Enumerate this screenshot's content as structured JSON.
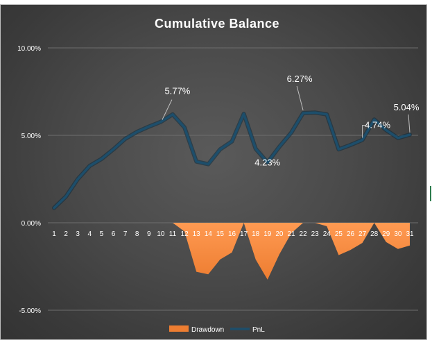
{
  "chart_data": {
    "type": "line",
    "title": "Cumulative Balance",
    "xlabel": "",
    "ylabel": "",
    "categories": [
      "1",
      "2",
      "3",
      "4",
      "5",
      "6",
      "7",
      "8",
      "9",
      "10",
      "11",
      "12",
      "13",
      "14",
      "15",
      "16",
      "17",
      "18",
      "19",
      "20",
      "21",
      "22",
      "23",
      "24",
      "25",
      "26",
      "27",
      "28",
      "29",
      "30",
      "31"
    ],
    "ylim": [
      -5,
      10
    ],
    "yticks": [
      -5,
      0,
      5,
      10
    ],
    "ytick_labels": [
      "-5.00%",
      "0.00%",
      "5.00%",
      "10.00%"
    ],
    "grid": true,
    "legend_position": "bottom",
    "series": [
      {
        "name": "Drawdown",
        "kind": "area",
        "color": "#ed7d31",
        "values": [
          0,
          0,
          0,
          0,
          0,
          0,
          0,
          0,
          0,
          0,
          0,
          -0.5,
          -2.8,
          -2.95,
          -2.1,
          -1.7,
          0,
          -2.1,
          -3.25,
          -1.8,
          -0.6,
          0,
          0,
          -0.2,
          -1.85,
          -1.55,
          -1.15,
          0,
          -1.1,
          -1.5,
          -1.3
        ]
      },
      {
        "name": "PnL",
        "kind": "line",
        "color": "#1d4e6b",
        "values": [
          0.85,
          1.5,
          2.5,
          3.25,
          3.65,
          4.2,
          4.8,
          5.2,
          5.5,
          5.77,
          6.2,
          5.45,
          3.5,
          3.35,
          4.2,
          4.65,
          6.23,
          4.23,
          3.45,
          4.35,
          5.15,
          6.27,
          6.3,
          6.2,
          4.2,
          4.45,
          4.74,
          5.9,
          5.3,
          4.85,
          5.04
        ]
      }
    ],
    "data_labels": [
      {
        "index": 9,
        "text": "5.77%"
      },
      {
        "index": 17,
        "text": "4.23%"
      },
      {
        "index": 21,
        "text": "6.27%"
      },
      {
        "index": 26,
        "text": "4.74%"
      },
      {
        "index": 30,
        "text": "5.04%"
      }
    ]
  }
}
